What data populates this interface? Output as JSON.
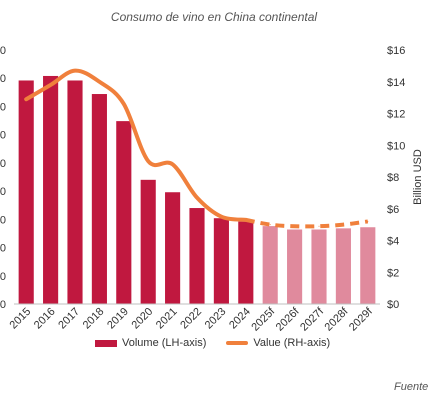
{
  "chart_data": {
    "type": "bar+line",
    "title": "Consumo de vino en China continental",
    "categories": [
      "2015",
      "2016",
      "2017",
      "2018",
      "2019",
      "2020",
      "2021",
      "2022",
      "2023",
      "2024",
      "2025f",
      "2026f",
      "2027f",
      "2028f",
      "2029f"
    ],
    "series": [
      {
        "name": "Volume (LH-axis)",
        "type": "bar",
        "axis": "left",
        "values": [
          19.8,
          20.2,
          19.8,
          18.6,
          16.2,
          11.0,
          9.9,
          8.5,
          7.6,
          7.3,
          6.9,
          6.6,
          6.6,
          6.7,
          6.8
        ],
        "forecast_from_index": 10
      },
      {
        "name": "Value (RH-axis)",
        "type": "line",
        "axis": "right",
        "values": [
          12.9,
          13.8,
          14.7,
          14.0,
          12.6,
          9.0,
          8.8,
          6.7,
          5.5,
          5.3,
          5.0,
          4.9,
          4.9,
          5.0,
          5.2
        ],
        "forecast_from_index": 10
      }
    ],
    "ylabel_right": "Billion USD",
    "yticks_left": [
      "0",
      "0",
      "0",
      "0",
      "0",
      "0",
      "0",
      "0",
      "0",
      "0"
    ],
    "ylim_left": [
      0,
      22.5
    ],
    "yticks_right": [
      "$0",
      "$2",
      "$4",
      "$6",
      "$8",
      "$10",
      "$12",
      "$14",
      "$16"
    ],
    "ylim_right": [
      0,
      16
    ],
    "colors": {
      "bar": "#c0183f",
      "bar_forecast": "#e08a9d",
      "line": "#f0803c"
    },
    "legend_position": "bottom"
  },
  "source_label": "Fuente"
}
